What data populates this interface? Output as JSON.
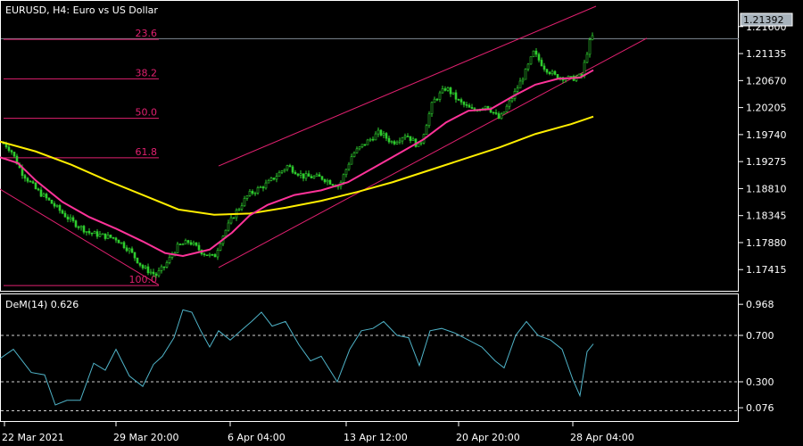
{
  "chart_data": [
    {
      "type": "candlestick",
      "symbol_label": "EURUSD, H4:  Euro vs US Dollar",
      "y_ticks": [
        "1.21600",
        "1.21135",
        "1.20670",
        "1.20205",
        "1.19740",
        "1.19275",
        "1.18810",
        "1.18345",
        "1.17880",
        "1.17415"
      ],
      "current_price": "1.21392",
      "ylim": [
        1.1705,
        1.2195
      ],
      "x_ticks": [
        "22 Mar 2021",
        "29 Mar 20:00",
        "6 Apr 04:00",
        "13 Apr 12:00",
        "20 Apr 20:00",
        "28 Apr 04:00"
      ],
      "fib_levels": [
        {
          "label": "23.6",
          "value": 1.2138
        },
        {
          "label": "38.2",
          "value": 1.207
        },
        {
          "label": "50.0",
          "value": 1.2002
        },
        {
          "label": "61.8",
          "value": 1.1934
        },
        {
          "label": "100.0",
          "value": 1.1714
        }
      ],
      "price_path": [
        [
          0,
          1.1965
        ],
        [
          12,
          1.1948
        ],
        [
          24,
          1.191
        ],
        [
          40,
          1.188
        ],
        [
          60,
          1.1853
        ],
        [
          80,
          1.1825
        ],
        [
          100,
          1.1805
        ],
        [
          115,
          1.18
        ],
        [
          130,
          1.1795
        ],
        [
          145,
          1.1775
        ],
        [
          160,
          1.1745
        ],
        [
          175,
          1.1732
        ],
        [
          185,
          1.1748
        ],
        [
          198,
          1.178
        ],
        [
          212,
          1.179
        ],
        [
          228,
          1.177
        ],
        [
          240,
          1.1762
        ],
        [
          248,
          1.1795
        ],
        [
          262,
          1.1835
        ],
        [
          278,
          1.187
        ],
        [
          300,
          1.189
        ],
        [
          322,
          1.192
        ],
        [
          340,
          1.1902
        ],
        [
          360,
          1.19
        ],
        [
          380,
          1.1885
        ],
        [
          395,
          1.194
        ],
        [
          410,
          1.196
        ],
        [
          425,
          1.1978
        ],
        [
          440,
          1.196
        ],
        [
          455,
          1.1975
        ],
        [
          470,
          1.1952
        ],
        [
          485,
          1.203
        ],
        [
          500,
          1.2055
        ],
        [
          515,
          1.203
        ],
        [
          530,
          1.2015
        ],
        [
          545,
          1.2025
        ],
        [
          560,
          1.2
        ],
        [
          575,
          1.204
        ],
        [
          590,
          1.2085
        ],
        [
          598,
          1.2115
        ],
        [
          610,
          1.209
        ],
        [
          622,
          1.2075
        ],
        [
          640,
          1.207
        ],
        [
          652,
          1.2075
        ],
        [
          660,
          1.213
        ],
        [
          667,
          1.2152
        ]
      ],
      "ma_fast": [
        [
          0,
          1.1935
        ],
        [
          20,
          1.1925
        ],
        [
          40,
          1.1895
        ],
        [
          70,
          1.1858
        ],
        [
          100,
          1.1832
        ],
        [
          130,
          1.1812
        ],
        [
          160,
          1.179
        ],
        [
          185,
          1.177
        ],
        [
          205,
          1.1765
        ],
        [
          235,
          1.1776
        ],
        [
          260,
          1.1805
        ],
        [
          280,
          1.1835
        ],
        [
          300,
          1.1853
        ],
        [
          330,
          1.187
        ],
        [
          360,
          1.1878
        ],
        [
          390,
          1.1892
        ],
        [
          420,
          1.1918
        ],
        [
          450,
          1.1944
        ],
        [
          475,
          1.1966
        ],
        [
          500,
          1.1995
        ],
        [
          525,
          1.2015
        ],
        [
          550,
          1.2018
        ],
        [
          575,
          1.204
        ],
        [
          600,
          1.206
        ],
        [
          625,
          1.207
        ],
        [
          650,
          1.2072
        ],
        [
          665,
          1.2085
        ]
      ],
      "ma_slow": [
        [
          0,
          1.1962
        ],
        [
          40,
          1.1945
        ],
        [
          80,
          1.1922
        ],
        [
          120,
          1.1895
        ],
        [
          160,
          1.187
        ],
        [
          200,
          1.1845
        ],
        [
          240,
          1.1836
        ],
        [
          280,
          1.1838
        ],
        [
          320,
          1.1848
        ],
        [
          360,
          1.186
        ],
        [
          400,
          1.1875
        ],
        [
          440,
          1.1892
        ],
        [
          480,
          1.1912
        ],
        [
          520,
          1.1932
        ],
        [
          560,
          1.1952
        ],
        [
          600,
          1.1975
        ],
        [
          640,
          1.1992
        ],
        [
          665,
          1.2005
        ]
      ],
      "channels": [
        {
          "from": [
            245,
            1.192
          ],
          "to": [
            668,
            1.2195
          ]
        },
        {
          "from": [
            245,
            1.1745
          ],
          "to": [
            725,
            1.214
          ]
        },
        {
          "from": [
            0,
            1.188
          ],
          "to": [
            178,
            1.1715
          ]
        }
      ]
    },
    {
      "type": "line",
      "label": "DeM(14) 0.626",
      "y_ticks": [
        "0.968",
        "0.700",
        "0.300",
        "0.076"
      ],
      "ylim": [
        0.0,
        1.0
      ],
      "levels": [
        0.7,
        0.3
      ],
      "series": [
        [
          0,
          0.5
        ],
        [
          15,
          0.58
        ],
        [
          35,
          0.38
        ],
        [
          50,
          0.36
        ],
        [
          62,
          0.1
        ],
        [
          75,
          0.14
        ],
        [
          90,
          0.14
        ],
        [
          105,
          0.46
        ],
        [
          118,
          0.4
        ],
        [
          130,
          0.58
        ],
        [
          145,
          0.35
        ],
        [
          160,
          0.26
        ],
        [
          172,
          0.45
        ],
        [
          182,
          0.52
        ],
        [
          195,
          0.68
        ],
        [
          205,
          0.92
        ],
        [
          215,
          0.9
        ],
        [
          225,
          0.74
        ],
        [
          235,
          0.6
        ],
        [
          245,
          0.74
        ],
        [
          258,
          0.66
        ],
        [
          270,
          0.74
        ],
        [
          282,
          0.82
        ],
        [
          293,
          0.9
        ],
        [
          305,
          0.78
        ],
        [
          320,
          0.82
        ],
        [
          335,
          0.62
        ],
        [
          348,
          0.48
        ],
        [
          360,
          0.52
        ],
        [
          378,
          0.3
        ],
        [
          392,
          0.58
        ],
        [
          405,
          0.74
        ],
        [
          418,
          0.76
        ],
        [
          430,
          0.82
        ],
        [
          445,
          0.7
        ],
        [
          458,
          0.68
        ],
        [
          470,
          0.44
        ],
        [
          482,
          0.74
        ],
        [
          495,
          0.76
        ],
        [
          510,
          0.72
        ],
        [
          525,
          0.66
        ],
        [
          540,
          0.6
        ],
        [
          555,
          0.48
        ],
        [
          565,
          0.42
        ],
        [
          578,
          0.7
        ],
        [
          590,
          0.82
        ],
        [
          603,
          0.7
        ],
        [
          617,
          0.66
        ],
        [
          630,
          0.58
        ],
        [
          642,
          0.32
        ],
        [
          650,
          0.18
        ],
        [
          658,
          0.56
        ],
        [
          665,
          0.626
        ]
      ]
    }
  ]
}
